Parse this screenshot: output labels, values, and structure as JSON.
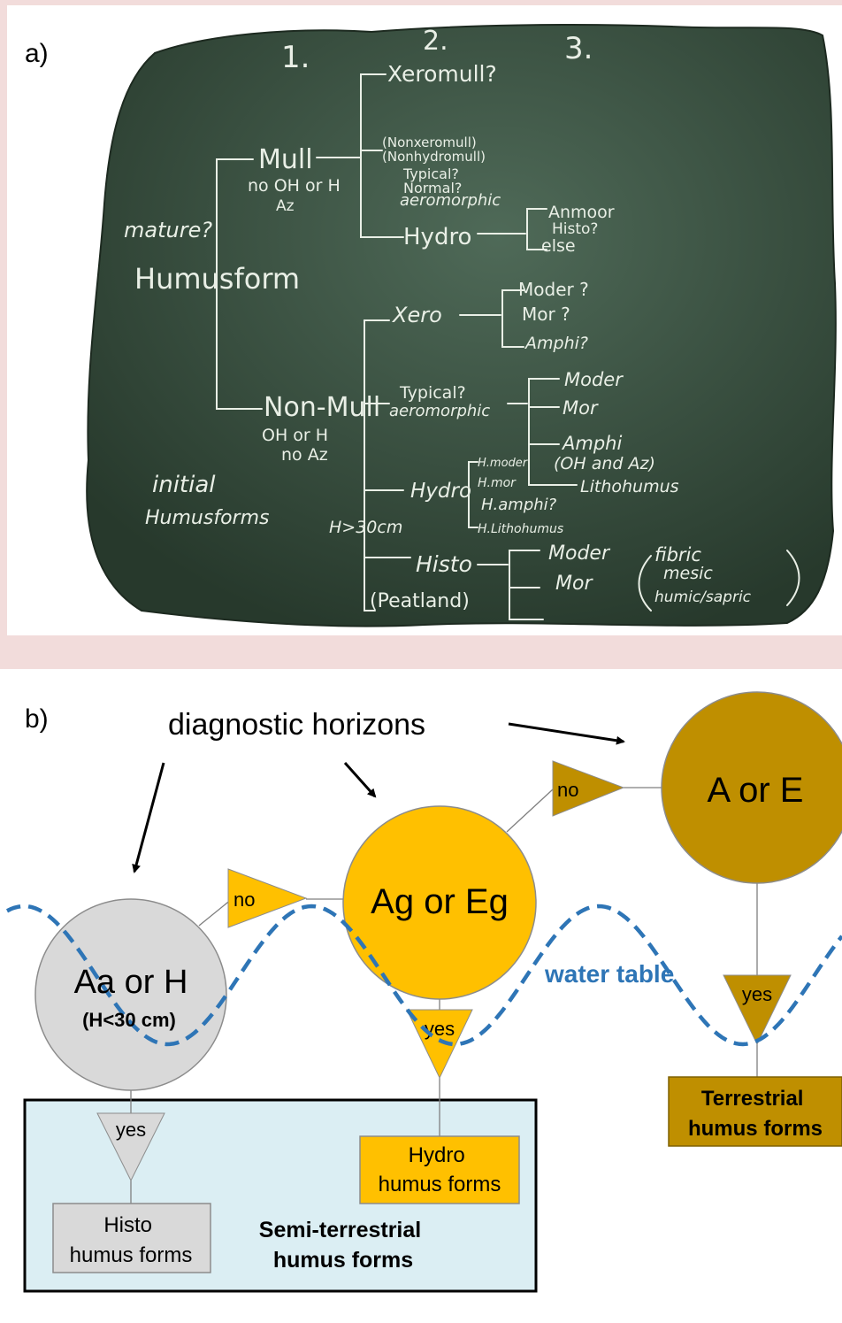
{
  "panel_a": {
    "label": "a)",
    "columns": [
      "1.",
      "2.",
      "3."
    ],
    "root_question": "mature?",
    "root": "Humusform",
    "initial": [
      "initial",
      "Humusforms"
    ],
    "mull": {
      "label": "Mull",
      "criteria": [
        "no OH or H",
        "Az"
      ],
      "xeromull": "Xeromull?",
      "nonxero": [
        "(Nonxeromull)",
        "(Nonhydromull)",
        "Typical?",
        "Normal?",
        "aeromorphic"
      ],
      "hydro": "Hydro",
      "hydro_sub": [
        "Anmoor",
        "Histo?",
        "else"
      ]
    },
    "nonmull": {
      "label": "Non-Mull",
      "criteria": [
        "OH or H",
        "no Az"
      ],
      "xero": "Xero",
      "xero_sub": [
        "Moder ?",
        "Mor ?",
        "Amphi?"
      ],
      "typical": [
        "Typical?",
        "aeromorphic"
      ],
      "typical_sub": [
        "Moder",
        "Mor",
        "Amphi",
        "(OH and Az)",
        "Lithohumus"
      ],
      "hydro": "Hydro",
      "hydro_sub": [
        "H.moder",
        "H.mor",
        "H.amphi?",
        "H.Lithohumus"
      ],
      "histo_condition": "H>30cm",
      "histo": "Histo",
      "histo_note": "(Peatland)",
      "histo_sub": [
        "Moder",
        "Mor"
      ],
      "histo_types": [
        "fibric",
        "mesic",
        "humic/sapric"
      ]
    }
  },
  "panel_b": {
    "label": "b)",
    "heading": "diagnostic horizons",
    "water_table": "water table",
    "nodes": {
      "aa": {
        "title": "Aa or H",
        "sub": "(H<30 cm)",
        "color": "#d9d9d9"
      },
      "ag": {
        "title": "Ag or Eg",
        "color": "#ffc000"
      },
      "ae": {
        "title": "A or E",
        "color": "#bf8f00"
      }
    },
    "decisions": {
      "no1": "no",
      "no2": "no",
      "yes_aa": "yes",
      "yes_ag": "yes",
      "yes_ae": "yes"
    },
    "outcomes": {
      "histo": [
        "Histo",
        "humus forms"
      ],
      "hydro": [
        "Hydro",
        "humus forms"
      ],
      "terrestrial": [
        "Terrestrial",
        "humus forms"
      ]
    },
    "group_label": [
      "Semi-terrestrial",
      "humus forms"
    ]
  }
}
